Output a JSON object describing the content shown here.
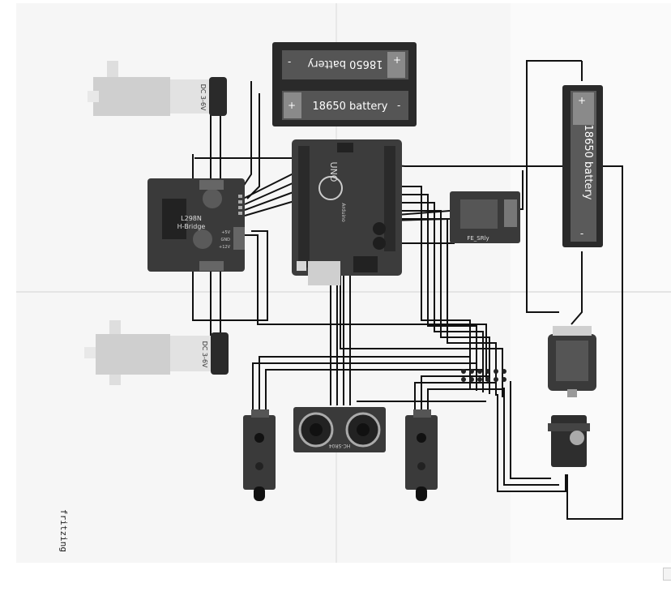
{
  "diagram": {
    "watermark": "fritzing",
    "battery_pack_top": {
      "label_a": "18650 battery",
      "label_b": "18650 battery",
      "plus": "+",
      "minus": "-"
    },
    "battery_right": {
      "label": "18650 battery",
      "plus": "+",
      "minus": "-"
    },
    "motor_driver": {
      "label_line1": "L298N",
      "label_line2": "H-Bridge",
      "pin_5v": "+5V",
      "pin_gnd": "GND",
      "pin_12v": "+12V"
    },
    "gear_motor_top": {
      "label": "DC 3-6V"
    },
    "gear_motor_bottom": {
      "label": "DC 3-6V"
    },
    "arduino": {
      "brand": "UNO",
      "sub": "Arduino"
    },
    "relay": {
      "label": "FE_SRly"
    },
    "ultrasonic": {
      "label": "HC-SR04"
    },
    "colors": {
      "board_dark": "#2b2b2b",
      "board_mid": "#3a3a3a",
      "wire": "#111111",
      "paper": "#f7f7f7",
      "battery_body": "#2e2e2e"
    }
  }
}
